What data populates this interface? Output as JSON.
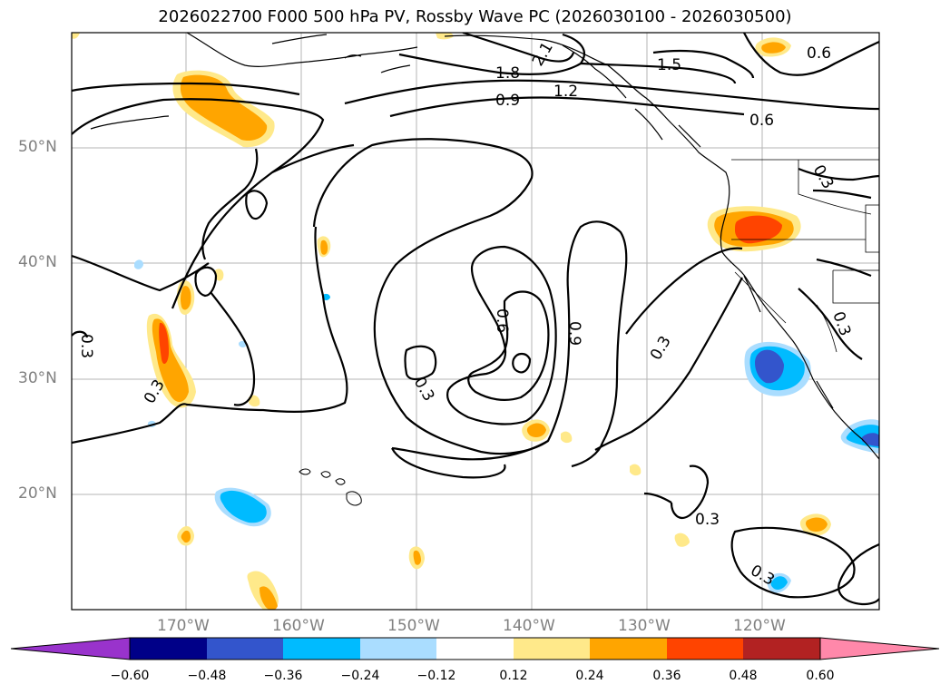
{
  "title": "2026022700 F000 500 hPa PV, Rossby Wave PC (2026030100 - 2026030500)",
  "lat_ticks": [
    "50°N",
    "40°N",
    "30°N",
    "20°N"
  ],
  "lon_ticks": [
    "170°W",
    "160°W",
    "150°W",
    "140°W",
    "130°W",
    "120°W"
  ],
  "colorbar": {
    "tick_labels": [
      "−0.60",
      "−0.48",
      "−0.36",
      "−0.24",
      "−0.12",
      "0.12",
      "0.24",
      "0.36",
      "0.48",
      "0.60"
    ],
    "colors": [
      "#9933cc",
      "#000088",
      "#3355cc",
      "#00bbff",
      "#aaddff",
      "#ffffff",
      "#ffe98a",
      "#ffa500",
      "#ff4400",
      "#b22222",
      "#ff88aa"
    ]
  },
  "contour_labels": [
    "2.1",
    "1.8",
    "1.5",
    "1.2",
    "0.9",
    "0.6",
    "0.6",
    "0.3",
    "0.3",
    "0.3",
    "0.3",
    "0.6",
    "0.9",
    "0.3",
    "0.3",
    "0.3",
    "0.3"
  ]
}
